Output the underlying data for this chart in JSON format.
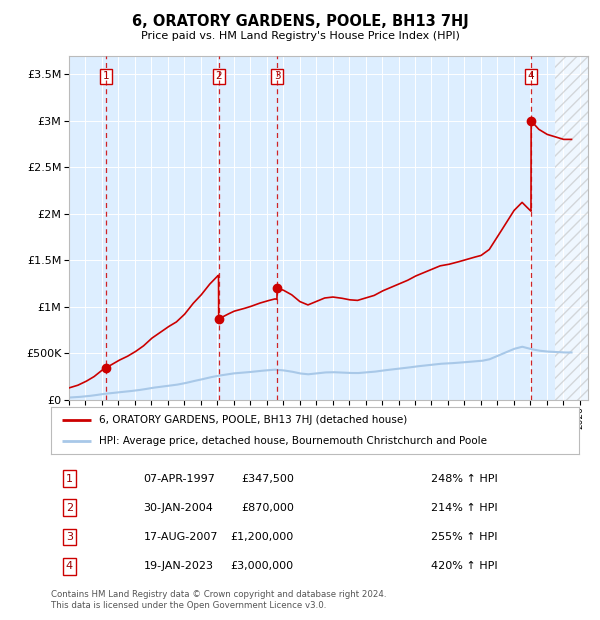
{
  "title": "6, ORATORY GARDENS, POOLE, BH13 7HJ",
  "subtitle": "Price paid vs. HM Land Registry's House Price Index (HPI)",
  "sales": [
    {
      "date": 1997.27,
      "price": 347500,
      "label": "1"
    },
    {
      "date": 2004.08,
      "price": 870000,
      "label": "2"
    },
    {
      "date": 2007.63,
      "price": 1200000,
      "label": "3"
    },
    {
      "date": 2023.05,
      "price": 3000000,
      "label": "4"
    }
  ],
  "hpi_color": "#a8c8e8",
  "price_color": "#cc0000",
  "bg_color": "#ddeeff",
  "hatch_region_start": 2024.5,
  "xmin": 1995.0,
  "xmax": 2026.5,
  "ymin": 0,
  "ymax": 3700000,
  "legend_line1": "6, ORATORY GARDENS, POOLE, BH13 7HJ (detached house)",
  "legend_line2": "HPI: Average price, detached house, Bournemouth Christchurch and Poole",
  "table": [
    {
      "num": "1",
      "date": "07-APR-1997",
      "price": "£347,500",
      "pct": "248% ↑ HPI"
    },
    {
      "num": "2",
      "date": "30-JAN-2004",
      "price": "£870,000",
      "pct": "214% ↑ HPI"
    },
    {
      "num": "3",
      "date": "17-AUG-2007",
      "price": "£1,200,000",
      "pct": "255% ↑ HPI"
    },
    {
      "num": "4",
      "date": "19-JAN-2023",
      "price": "£3,000,000",
      "pct": "420% ↑ HPI"
    }
  ],
  "footer": "Contains HM Land Registry data © Crown copyright and database right 2024.\nThis data is licensed under the Open Government Licence v3.0.",
  "hpi_years": [
    1995,
    1995.5,
    1996,
    1996.5,
    1997,
    1997.5,
    1998,
    1998.5,
    1999,
    1999.5,
    2000,
    2000.5,
    2001,
    2001.5,
    2002,
    2002.5,
    2003,
    2003.5,
    2004,
    2004.5,
    2005,
    2005.5,
    2006,
    2006.5,
    2007,
    2007.5,
    2008,
    2008.5,
    2009,
    2009.5,
    2010,
    2010.5,
    2011,
    2011.5,
    2012,
    2012.5,
    2013,
    2013.5,
    2014,
    2014.5,
    2015,
    2015.5,
    2016,
    2016.5,
    2017,
    2017.5,
    2018,
    2018.5,
    2019,
    2019.5,
    2020,
    2020.5,
    2021,
    2021.5,
    2022,
    2022.5,
    2023,
    2023.5,
    2024,
    2024.5,
    2025
  ],
  "hpi_vals": [
    25000,
    30000,
    38000,
    48000,
    62000,
    72000,
    82000,
    90000,
    100000,
    112000,
    128000,
    140000,
    152000,
    162000,
    178000,
    200000,
    218000,
    240000,
    258000,
    272000,
    285000,
    292000,
    300000,
    310000,
    318000,
    325000,
    318000,
    305000,
    285000,
    275000,
    285000,
    295000,
    298000,
    295000,
    290000,
    288000,
    295000,
    302000,
    315000,
    325000,
    335000,
    345000,
    358000,
    368000,
    378000,
    388000,
    392000,
    398000,
    405000,
    412000,
    418000,
    435000,
    472000,
    510000,
    548000,
    572000,
    548000,
    530000,
    520000,
    515000,
    510000
  ]
}
